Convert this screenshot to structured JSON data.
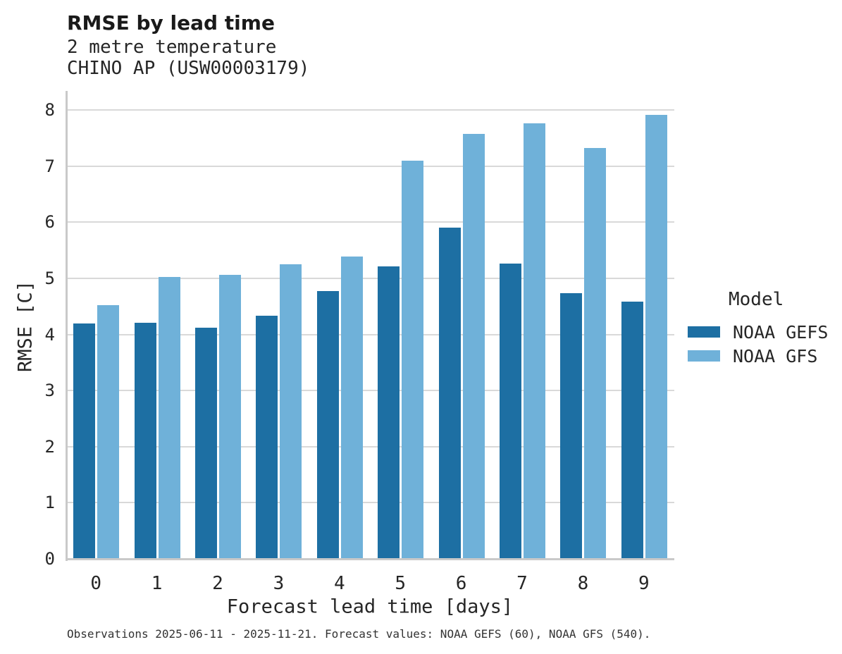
{
  "header": {
    "title": "RMSE by lead time",
    "subtitle1": "2 metre temperature",
    "subtitle2": "CHINO AP (USW00003179)"
  },
  "chart_data": {
    "type": "bar",
    "title": "RMSE by lead time",
    "subtitle": "2 metre temperature — CHINO AP (USW00003179)",
    "categories": [
      "0",
      "1",
      "2",
      "3",
      "4",
      "5",
      "6",
      "7",
      "8",
      "9"
    ],
    "series": [
      {
        "name": "NOAA GEFS",
        "color": "#1d6fa3",
        "values": [
          4.2,
          4.21,
          4.12,
          4.33,
          4.78,
          5.22,
          5.9,
          5.27,
          4.74,
          4.59
        ]
      },
      {
        "name": "NOAA GFS",
        "color": "#6fb1d9",
        "values": [
          4.52,
          5.02,
          5.06,
          5.25,
          5.39,
          7.1,
          7.58,
          7.77,
          7.32,
          7.92
        ]
      }
    ],
    "xlabel": "Forecast lead time [days]",
    "ylabel": "RMSE [C]",
    "ylim": [
      0,
      8.33
    ],
    "yticks": [
      0,
      1,
      2,
      3,
      4,
      5,
      6,
      7,
      8
    ],
    "grid": true,
    "legend_title": "Model",
    "legend_position": "right"
  },
  "legend": {
    "title": "Model",
    "items": [
      {
        "label": "NOAA GEFS",
        "color": "#1d6fa3"
      },
      {
        "label": "NOAA GFS",
        "color": "#6fb1d9"
      }
    ]
  },
  "footer": {
    "caption": "Observations 2025-06-11 - 2025-11-21. Forecast values: NOAA GEFS (60), NOAA GFS (540)."
  }
}
